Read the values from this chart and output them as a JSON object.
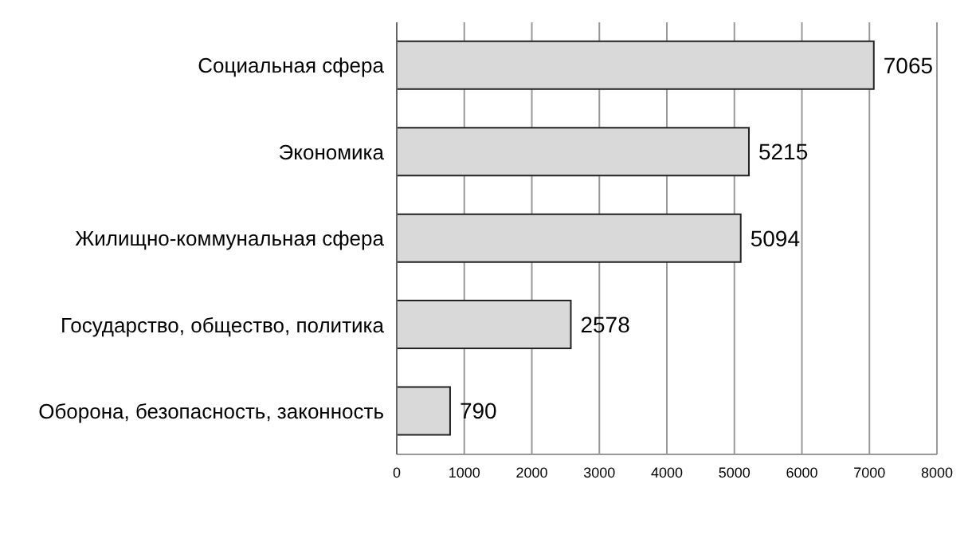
{
  "chart_data": {
    "type": "bar",
    "orientation": "horizontal",
    "categories": [
      "Социальная сфера",
      "Экономика",
      "Жилищно-коммунальная сфера",
      "Государство, общество, политика",
      "Оборона, безопасность, законность"
    ],
    "values": [
      7065,
      5215,
      5094,
      2578,
      790
    ],
    "color": "#d9d9d9",
    "xlim": [
      0,
      8000
    ],
    "xticks": [
      0,
      1000,
      2000,
      3000,
      4000,
      5000,
      6000,
      7000,
      8000
    ],
    "grid": "x",
    "data_labels": true
  }
}
